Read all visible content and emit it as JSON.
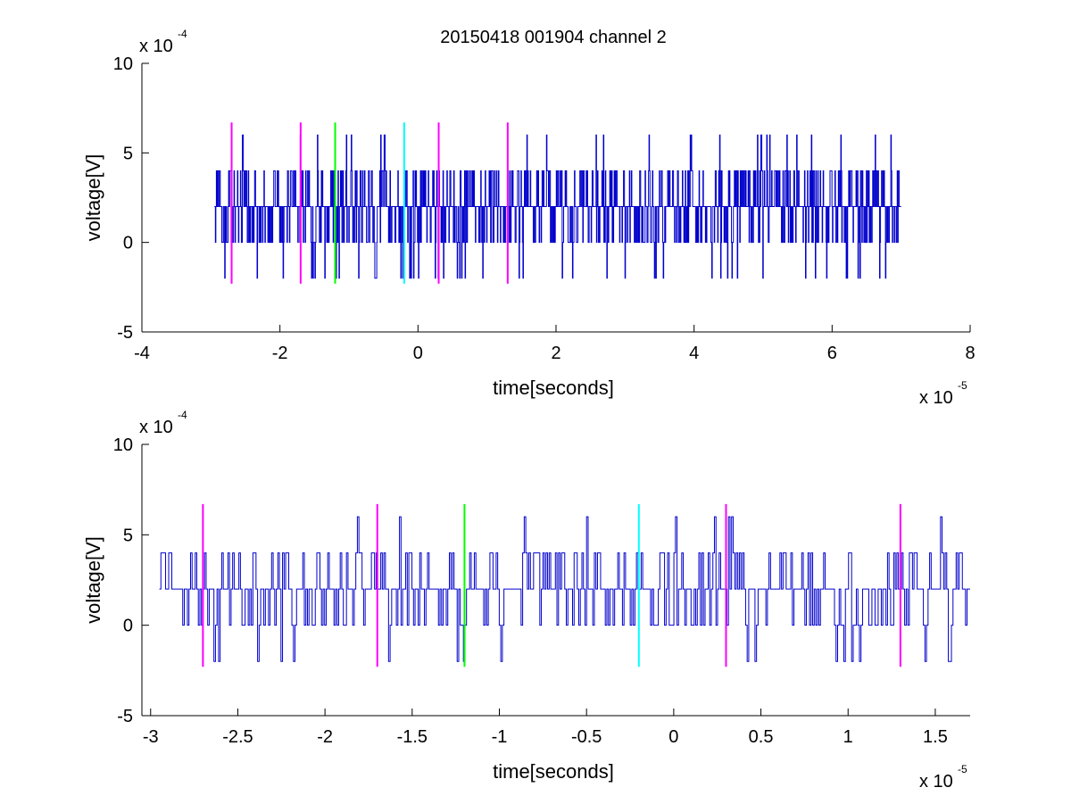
{
  "figure_title": "20150418 001904 channel 2",
  "chart_data": [
    {
      "type": "line",
      "title": "20150418 001904 channel 2",
      "xlabel": "time[seconds]",
      "ylabel": "voltage[V]",
      "x_exponent_label": "x 10",
      "x_exponent_power": "-5",
      "y_exponent_label": "x 10",
      "y_exponent_power": "-4",
      "xlim": [
        -4,
        8
      ],
      "ylim": [
        -5,
        10
      ],
      "x_ticks": [
        -4,
        -2,
        0,
        2,
        4,
        6,
        8
      ],
      "x_tick_labels": [
        "-4",
        "-2",
        "0",
        "2",
        "4",
        "6",
        "8"
      ],
      "y_ticks": [
        -5,
        0,
        5,
        10
      ],
      "y_tick_labels": [
        "-5",
        "0",
        "5",
        "10"
      ],
      "grid": false,
      "colors": {
        "signal": "#0000cc",
        "marker_magenta": "#ff00ff",
        "marker_green": "#00ff00",
        "marker_cyan": "#00ffff"
      },
      "signal": {
        "x_start": -2.95,
        "x_end": 7.0,
        "levels": [
          -2,
          0,
          2,
          4,
          6
        ],
        "baseline": 2,
        "band": [
          0,
          4
        ]
      },
      "markers": [
        {
          "x": -2.7,
          "color": "magenta",
          "y1": -2.3,
          "y2": 6.7
        },
        {
          "x": -1.7,
          "color": "magenta",
          "y1": -2.3,
          "y2": 6.7
        },
        {
          "x": -1.2,
          "color": "green",
          "y1": -2.3,
          "y2": 6.7
        },
        {
          "x": -0.2,
          "color": "cyan",
          "y1": -2.3,
          "y2": 6.7
        },
        {
          "x": 0.3,
          "color": "magenta",
          "y1": -2.3,
          "y2": 6.7
        },
        {
          "x": 1.3,
          "color": "magenta",
          "y1": -2.3,
          "y2": 6.7
        }
      ]
    },
    {
      "type": "line",
      "title": "",
      "xlabel": "time[seconds]",
      "ylabel": "voltage[V]",
      "x_exponent_label": "x 10",
      "x_exponent_power": "-5",
      "y_exponent_label": "x 10",
      "y_exponent_power": "-4",
      "xlim": [
        -3.05,
        1.7
      ],
      "ylim": [
        -5,
        10
      ],
      "x_ticks": [
        -3,
        -2.5,
        -2,
        -1.5,
        -1,
        -0.5,
        0,
        0.5,
        1,
        1.5
      ],
      "x_tick_labels": [
        "-3",
        "-2.5",
        "-2",
        "-1.5",
        "-1",
        "-0.5",
        "0",
        "0.5",
        "1",
        "1.5"
      ],
      "y_ticks": [
        -5,
        0,
        5,
        10
      ],
      "y_tick_labels": [
        "-5",
        "0",
        "5",
        "10"
      ],
      "grid": false,
      "colors": {
        "signal": "#0000cc",
        "marker_magenta": "#ff00ff",
        "marker_green": "#00ff00",
        "marker_cyan": "#00ffff"
      },
      "signal": {
        "x_start": -2.95,
        "x_end": 1.7,
        "levels": [
          -2,
          0,
          2,
          4,
          6
        ],
        "baseline": 2,
        "band": [
          0,
          4
        ]
      },
      "markers": [
        {
          "x": -2.7,
          "color": "magenta",
          "y1": -2.3,
          "y2": 6.7
        },
        {
          "x": -1.7,
          "color": "magenta",
          "y1": -2.3,
          "y2": 6.7
        },
        {
          "x": -1.2,
          "color": "green",
          "y1": -2.3,
          "y2": 6.7
        },
        {
          "x": -0.2,
          "color": "cyan",
          "y1": -2.3,
          "y2": 6.7
        },
        {
          "x": 0.3,
          "color": "magenta",
          "y1": -2.3,
          "y2": 6.7
        },
        {
          "x": 1.3,
          "color": "magenta",
          "y1": -2.3,
          "y2": 6.7
        }
      ]
    }
  ]
}
